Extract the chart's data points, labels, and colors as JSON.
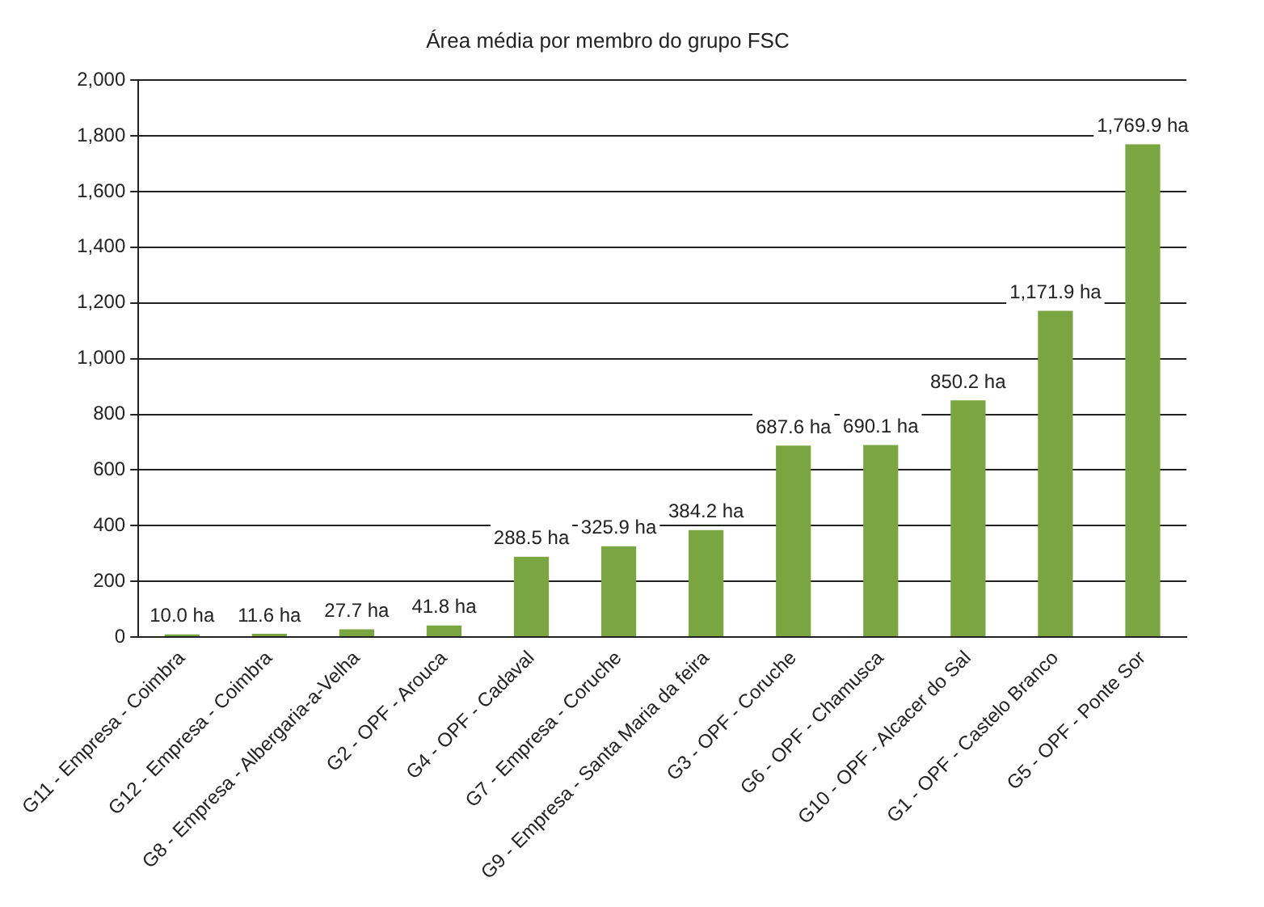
{
  "chart_data": {
    "type": "bar",
    "title": "Área média por membro do grupo FSC",
    "categories": [
      "G11 - Empresa - Coimbra",
      "G12 - Empresa - Coimbra",
      "G8 - Empresa - Albergaria-a-Velha",
      "G2 - OPF - Arouca",
      "G4 - OPF - Cadaval",
      "G7 - Empresa - Coruche",
      "G9 - Empresa - Santa Maria da feira",
      "G3 - OPF - Coruche",
      "G6 - OPF - Chamusca",
      "G10 - OPF - Alcacer do Sal",
      "G1 - OPF - Castelo Branco",
      "G5 - OPF - Ponte Sor"
    ],
    "values": [
      10.0,
      11.6,
      27.7,
      41.8,
      288.5,
      325.9,
      384.2,
      687.6,
      690.1,
      850.2,
      1171.9,
      1769.9
    ],
    "value_labels": [
      "10.0 ha",
      "11.6 ha",
      "27.7 ha",
      "41.8 ha",
      "288.5 ha",
      "325.9 ha",
      "384.2 ha",
      "687.6 ha",
      "690.1 ha",
      "850.2 ha",
      "1,171.9 ha",
      "1,769.9 ha"
    ],
    "color": "#7aa641",
    "ylim": [
      0,
      2000
    ],
    "yticks": [
      0,
      200,
      400,
      600,
      800,
      {
        "value": 1000,
        "label": "1,000"
      },
      {
        "value": 1200,
        "label": "1,200"
      },
      {
        "value": 1400,
        "label": "1,400"
      },
      {
        "value": 1600,
        "label": "1,600"
      },
      {
        "value": 1800,
        "label": "1,800"
      },
      {
        "value": 2000,
        "label": "2,000"
      }
    ],
    "grid": "y",
    "legend": false
  }
}
